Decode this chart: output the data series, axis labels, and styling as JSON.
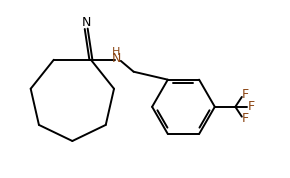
{
  "background_color": "#ffffff",
  "line_color": "#000000",
  "label_color_NH": "#8B4513",
  "label_color_F": "#8B4513",
  "figsize": [
    2.9,
    1.78
  ],
  "dpi": 100,
  "xlim": [
    0,
    10
  ],
  "ylim": [
    0,
    6.15
  ]
}
